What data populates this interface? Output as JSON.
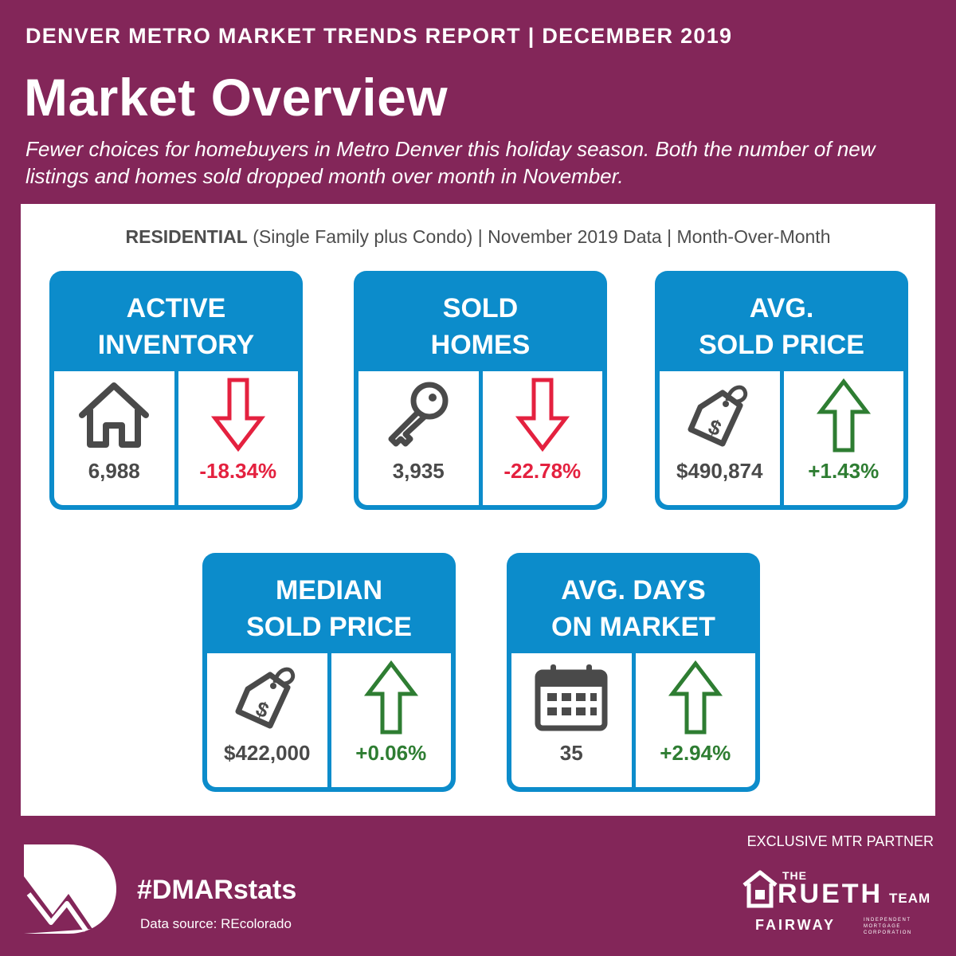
{
  "header": {
    "report_title": "DENVER METRO MARKET TRENDS REPORT  |  DECEMBER 2019",
    "title": "Market Overview",
    "subtitle": "Fewer choices for homebuyers in Metro Denver this holiday season. Both the number of new listings and homes sold dropped month over month in November."
  },
  "panel": {
    "residential_bold": "RESIDENTIAL",
    "residential_rest": " (Single Family plus Condo) | November 2019 Data | Month-Over-Month"
  },
  "cards": [
    {
      "title_line1": "ACTIVE",
      "title_line2": "INVENTORY",
      "icon": "house-icon",
      "value": "6,988",
      "change": "-18.34%",
      "direction": "down"
    },
    {
      "title_line1": "SOLD",
      "title_line2": "HOMES",
      "icon": "key-icon",
      "value": "3,935",
      "change": "-22.78%",
      "direction": "down"
    },
    {
      "title_line1": "AVG.",
      "title_line2": "SOLD PRICE",
      "icon": "price-tag-icon",
      "value": "$490,874",
      "change": "+1.43%",
      "direction": "up"
    },
    {
      "title_line1": "MEDIAN",
      "title_line2": "SOLD PRICE",
      "icon": "price-tag-icon",
      "value": "$422,000",
      "change": "+0.06%",
      "direction": "up"
    },
    {
      "title_line1": "AVG. DAYS",
      "title_line2": "ON MARKET",
      "icon": "calendar-icon",
      "value": "35",
      "change": "+2.94%",
      "direction": "up"
    }
  ],
  "footer": {
    "hashtag": "#DMARstats",
    "data_source": "Data source: REcolorado",
    "partner_label": "EXCLUSIVE MTR PARTNER",
    "partner_the": "THE",
    "partner_name": "RUETH",
    "partner_team": "TEAM",
    "partner_fairway": "FAIRWAY",
    "partner_fairway_sub": "INDEPENDENT MORTGAGE CORPORATION"
  },
  "colors": {
    "background": "#832659",
    "card_blue": "#0c8ccb",
    "down_red": "#e4213f",
    "up_green": "#2e7d32",
    "text_gray": "#4a4a4a"
  }
}
